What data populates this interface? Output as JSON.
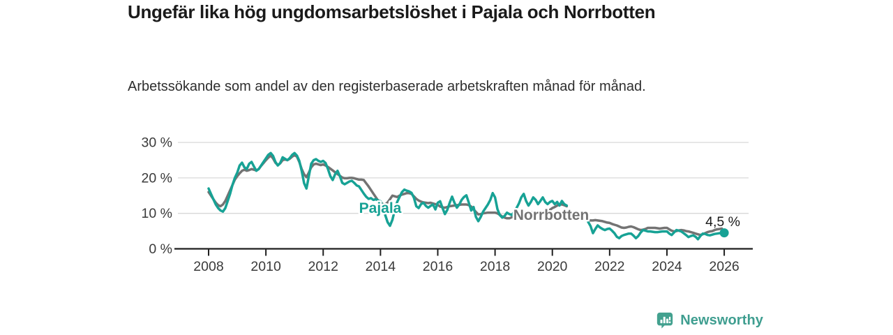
{
  "header": {
    "title": "Ungefär lika hög ungdomsarbetslöshet i Pajala och Norrbotten",
    "subtitle": "Arbetssökande som andel av den registerbaserade arbetskraften månad för månad."
  },
  "colors": {
    "pajala_teal": "#17a295",
    "norrbotten_gray": "#737373",
    "grid": "#d8d8d8",
    "axis": "#1f1f1f",
    "tick_label": "#3a3a3a",
    "brand_teal": "#3f9e90"
  },
  "footer": {
    "brand": "Newsworthy",
    "logo_icon": "bar-chart-badge-icon"
  },
  "chart_data": {
    "type": "line",
    "title": "Ungefär lika hög ungdomsarbetslöshet i Pajala och Norrbotten",
    "xlabel": "",
    "ylabel": "",
    "grid": "horizontal",
    "legend_position": "inline-labels",
    "x_unit": "year",
    "frequency": "monthly",
    "x_start_year": 2008,
    "xlim": [
      2008,
      2026.3
    ],
    "ylim": [
      0,
      32
    ],
    "x_ticks": [
      2008,
      2010,
      2012,
      2014,
      2016,
      2018,
      2020,
      2022,
      2024,
      2026
    ],
    "y_ticks": [
      {
        "value": 0,
        "label": "0 %"
      },
      {
        "value": 10,
        "label": "10 %"
      },
      {
        "value": 20,
        "label": "20 %"
      },
      {
        "value": 30,
        "label": "30 %"
      }
    ],
    "end_annotation": {
      "series": "Pajala",
      "label": "4,5 %",
      "value": 4.5
    },
    "series": [
      {
        "name": "Pajala",
        "color": "#17a295",
        "values": [
          17,
          15.5,
          14,
          12.5,
          11.5,
          10.8,
          10.5,
          11.5,
          13.5,
          15.5,
          18,
          20,
          21.5,
          23.5,
          24.3,
          23,
          22.5,
          24,
          24.5,
          23.2,
          22,
          22.5,
          23.5,
          24.5,
          25.5,
          26.5,
          27,
          26.2,
          24.5,
          23.5,
          24.2,
          25.8,
          25.4,
          25,
          25.6,
          26.5,
          27,
          26.3,
          24.8,
          22,
          18.5,
          17,
          20.5,
          24,
          25,
          25.3,
          24.8,
          24.5,
          24.8,
          24.2,
          22.5,
          20.5,
          19.4,
          21,
          22,
          20.5,
          18.6,
          18.2,
          18.6,
          19,
          19.2,
          18.6,
          17.9,
          17.6,
          16.6,
          15.6,
          14.7,
          14.1,
          14.3,
          13.8,
          14,
          13.6,
          13.4,
          11.8,
          9.5,
          7.5,
          6.5,
          8.2,
          11,
          13.2,
          14.6,
          16,
          16.7,
          16.4,
          16.2,
          15.8,
          14.4,
          12,
          11.5,
          12.6,
          13,
          12.1,
          11.6,
          12.1,
          12.5,
          11.1,
          13,
          13.4,
          11.5,
          9.8,
          11,
          13,
          14.7,
          13,
          11.6,
          12.5,
          13.8,
          14.6,
          15.1,
          13,
          10.8,
          11.8,
          9,
          7.8,
          9,
          10.5,
          11.5,
          12.5,
          13.8,
          15.7,
          14.5,
          11.2,
          9.5,
          8.8,
          9.3,
          10.2,
          9.8,
          9.5,
          10.5,
          11.5,
          12.8,
          14.5,
          15.5,
          13.5,
          12.2,
          13.2,
          14.5,
          13.8,
          12.6,
          13.5,
          14.5,
          13.2,
          12.6,
          13.2,
          13.5,
          12.6,
          13.2,
          12.2,
          13.5,
          12.6,
          12.2,
          null,
          null,
          null,
          null,
          null,
          null,
          null,
          null,
          7.6,
          6.4,
          4.4,
          5.6,
          6.6,
          6,
          5.6,
          5.3,
          5.6,
          5.7,
          5.1,
          4.4,
          3.4,
          3,
          3.6,
          3.9,
          4.1,
          4.3,
          4.3,
          3.7,
          3,
          3.6,
          4.6,
          5.3,
          5.1,
          4.9,
          4.9,
          4.8,
          4.7,
          4.7,
          4.8,
          4.9,
          4.9,
          4.9,
          4.3,
          3.9,
          4.6,
          5.3,
          5.1,
          4.9,
          4.4,
          3.9,
          3.3,
          3.6,
          3.8,
          3.4,
          2.7,
          3.6,
          4.3,
          4.2,
          3.9,
          3.8,
          4,
          4.2,
          4.3,
          4.4,
          4.4,
          4.5
        ]
      },
      {
        "name": "Norrbotten",
        "color": "#737373",
        "values": [
          16,
          15,
          14,
          13,
          12.3,
          12,
          12.5,
          13.5,
          15,
          16.5,
          18,
          19.5,
          20.5,
          21.3,
          22,
          22.3,
          22,
          22.2,
          22.5,
          22.3,
          22.1,
          22.5,
          23.4,
          24.2,
          25,
          25.7,
          26.3,
          25.5,
          24.3,
          23.6,
          24.1,
          25,
          25.2,
          25,
          25.4,
          26,
          26.4,
          26,
          24.5,
          22.5,
          21,
          20.2,
          21.5,
          23,
          23.8,
          24,
          23.8,
          23.6,
          23.8,
          23.5,
          23.1,
          22.6,
          22.1,
          21.6,
          21.1,
          20.6,
          20.1,
          19.9,
          19.9,
          20,
          20,
          19.9,
          19.7,
          19.5,
          19.5,
          19.4,
          18.5,
          17.6,
          16.6,
          15.6,
          14.6,
          13.6,
          13.1,
          12.6,
          12.5,
          13.1,
          14,
          15,
          14.8,
          14.6,
          15,
          15.3,
          15.5,
          15.7,
          15.7,
          15.5,
          14.8,
          14.1,
          13.6,
          13.3,
          13.1,
          13,
          12.9,
          13,
          12.8,
          12.6,
          12.4,
          11.9,
          11.7,
          11.6,
          11.8,
          12,
          12.1,
          12.2,
          12.3,
          12.4,
          12.5,
          12.5,
          12.5,
          12.3,
          11.9,
          11.1,
          10.4,
          9.7,
          9.8,
          10,
          10.1,
          10.2,
          10.2,
          10.2,
          10.2,
          10,
          9.6,
          9.1,
          8.8,
          8.6,
          8.6,
          8.9,
          9.2,
          9.6,
          10,
          10.2,
          10.3,
          10.4,
          10.5,
          10.4,
          10.3,
          10.2,
          10.3,
          10.5,
          10.4,
          10.3,
          10.6,
          11,
          11.5,
          11.8,
          12.2,
          12.5,
          12.5,
          12.3,
          12,
          null,
          null,
          null,
          null,
          null,
          null,
          null,
          null,
          8.2,
          8,
          8,
          8.1,
          8,
          7.9,
          7.8,
          7.6,
          7.4,
          7.3,
          7,
          6.8,
          6.6,
          6.3,
          6,
          5.9,
          6,
          6.2,
          6.3,
          6.1,
          5.8,
          5.5,
          5.3,
          5.4,
          5.6,
          5.9,
          5.9,
          5.9,
          5.9,
          5.8,
          5.7,
          5.8,
          5.9,
          5.9,
          5.5,
          5.1,
          4.9,
          5,
          5.2,
          5.3,
          5.2,
          5,
          4.9,
          4.7,
          4.5,
          4.3,
          4.1,
          3.9,
          4.1,
          4.4,
          4.7,
          4.9,
          5,
          5.3,
          5.5,
          5.6,
          5.7,
          null
        ]
      }
    ]
  }
}
